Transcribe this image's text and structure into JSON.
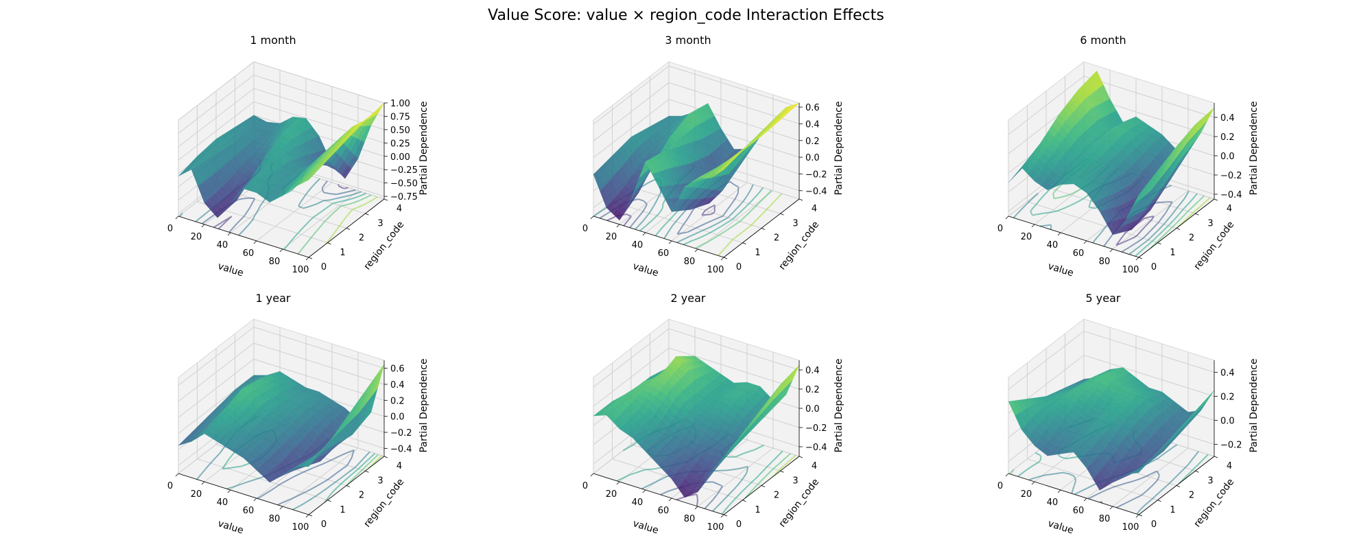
{
  "figure": {
    "title": "Value Score: value × region_code Interaction Effects"
  },
  "chart_data": [
    {
      "type": "surface",
      "title": "1 month",
      "xlabel": "value",
      "ylabel": "region_code",
      "zlabel": "Partial Dependence",
      "xlim": [
        0,
        100
      ],
      "ylim": [
        0,
        4
      ],
      "zlim": [
        -0.8,
        1.0
      ],
      "xticks": [
        "0",
        "20",
        "40",
        "60",
        "80",
        "100"
      ],
      "yticks": [
        "0",
        "1",
        "2",
        "3",
        "4"
      ],
      "zticks": [
        "−0.75",
        "−0.50",
        "−0.25",
        "0.00",
        "0.25",
        "0.50",
        "0.75",
        "1.00"
      ],
      "zticks_values": [
        -0.75,
        -0.5,
        -0.25,
        0,
        0.25,
        0.5,
        0.75,
        1.0
      ],
      "colormap": "viridis",
      "contour_projection": true,
      "surface": [
        [
          -0.05,
          0.15,
          -0.4,
          -0.6,
          -0.25,
          0.1,
          0.1,
          0.0,
          0.2,
          0.45,
          0.65
        ],
        [
          0.05,
          0.1,
          -0.35,
          -0.55,
          -0.1,
          0.15,
          0.05,
          0.05,
          0.3,
          0.55,
          0.75
        ],
        [
          0.1,
          0.05,
          -0.25,
          -0.3,
          0.15,
          0.2,
          0.0,
          0.1,
          0.4,
          0.65,
          0.85
        ],
        [
          0.05,
          0.0,
          -0.1,
          0.05,
          0.3,
          0.1,
          -0.2,
          0.0,
          0.45,
          0.75,
          0.95
        ],
        [
          0.0,
          -0.05,
          0.0,
          0.2,
          0.25,
          0.0,
          -0.45,
          -0.65,
          -0.2,
          0.5,
          1.0
        ]
      ]
    },
    {
      "type": "surface",
      "title": "3 month",
      "xlabel": "value",
      "ylabel": "region_code",
      "zlabel": "Partial Dependence",
      "xlim": [
        0,
        100
      ],
      "ylim": [
        0,
        4
      ],
      "zlim": [
        -0.5,
        0.65
      ],
      "xticks": [
        "0",
        "20",
        "40",
        "60",
        "80",
        "100"
      ],
      "yticks": [
        "0",
        "1",
        "2",
        "3",
        "4"
      ],
      "zticks": [
        "−0.4",
        "−0.2",
        "0.0",
        "0.2",
        "0.4",
        "0.6"
      ],
      "zticks_values": [
        -0.4,
        -0.2,
        0.0,
        0.2,
        0.4,
        0.6
      ],
      "colormap": "viridis",
      "contour_projection": true,
      "surface": [
        [
          0.0,
          -0.35,
          -0.45,
          -0.1,
          0.35,
          0.1,
          -0.15,
          0.2,
          0.35,
          0.4,
          0.55
        ],
        [
          0.05,
          -0.25,
          -0.3,
          0.05,
          0.3,
          -0.05,
          -0.3,
          0.0,
          0.3,
          0.45,
          0.6
        ],
        [
          0.1,
          -0.1,
          -0.05,
          0.25,
          0.2,
          -0.2,
          -0.4,
          -0.2,
          0.25,
          0.45,
          0.6
        ],
        [
          0.05,
          0.0,
          0.1,
          0.35,
          0.1,
          -0.25,
          -0.3,
          -0.05,
          0.3,
          0.5,
          0.62
        ],
        [
          0.0,
          0.05,
          0.15,
          0.3,
          0.05,
          -0.15,
          -0.1,
          0.1,
          0.35,
          0.55,
          0.65
        ]
      ]
    },
    {
      "type": "surface",
      "title": "6 month",
      "xlabel": "value",
      "ylabel": "region_code",
      "zlabel": "Partial Dependence",
      "xlim": [
        0,
        100
      ],
      "ylim": [
        0,
        4
      ],
      "zlim": [
        -0.45,
        0.55
      ],
      "xticks": [
        "0",
        "20",
        "40",
        "60",
        "80",
        "100"
      ],
      "yticks": [
        "0",
        "1",
        "2",
        "3",
        "4"
      ],
      "zticks": [
        "−0.4",
        "−0.2",
        "0.0",
        "0.2",
        "0.4"
      ],
      "zticks_values": [
        -0.4,
        -0.2,
        0.0,
        0.2,
        0.4
      ],
      "colormap": "viridis",
      "contour_projection": true,
      "surface": [
        [
          -0.1,
          0.1,
          0.0,
          -0.05,
          0.05,
          0.1,
          0.05,
          -0.1,
          -0.3,
          -0.1,
          0.2
        ],
        [
          -0.05,
          0.2,
          0.15,
          0.05,
          0.1,
          0.05,
          0.0,
          -0.2,
          -0.4,
          -0.15,
          0.3
        ],
        [
          0.0,
          0.35,
          0.25,
          0.1,
          0.15,
          0.05,
          -0.05,
          -0.25,
          -0.35,
          -0.05,
          0.4
        ],
        [
          0.05,
          0.45,
          0.3,
          0.1,
          0.2,
          0.1,
          0.0,
          -0.15,
          -0.2,
          0.1,
          0.48
        ],
        [
          0.0,
          0.5,
          0.25,
          0.05,
          0.15,
          0.1,
          0.05,
          -0.05,
          -0.05,
          0.2,
          0.5
        ]
      ]
    },
    {
      "type": "surface",
      "title": "1 year",
      "xlabel": "value",
      "ylabel": "region_code",
      "zlabel": "Partial Dependence",
      "xlim": [
        0,
        100
      ],
      "ylim": [
        0,
        4
      ],
      "zlim": [
        -0.5,
        0.7
      ],
      "xticks": [
        "0",
        "20",
        "40",
        "60",
        "80",
        "100"
      ],
      "yticks": [
        "0",
        "1",
        "2",
        "3",
        "4"
      ],
      "zticks": [
        "−0.4",
        "−0.2",
        "0.0",
        "0.2",
        "0.4",
        "0.6"
      ],
      "zticks_values": [
        -0.4,
        -0.2,
        0.0,
        0.2,
        0.4,
        0.6
      ],
      "colormap": "viridis",
      "contour_projection": true,
      "surface": [
        [
          -0.15,
          -0.05,
          0.1,
          0.05,
          0.0,
          -0.05,
          -0.15,
          -0.25,
          -0.1,
          0.05,
          0.1
        ],
        [
          -0.1,
          0.0,
          0.2,
          0.15,
          0.05,
          0.0,
          -0.1,
          -0.3,
          -0.2,
          0.0,
          0.2
        ],
        [
          -0.05,
          0.05,
          0.3,
          0.25,
          0.1,
          0.05,
          -0.05,
          -0.2,
          -0.3,
          -0.05,
          0.35
        ],
        [
          0.0,
          0.1,
          0.25,
          0.2,
          0.1,
          0.1,
          0.0,
          -0.1,
          -0.25,
          -0.1,
          0.5
        ],
        [
          0.0,
          0.05,
          0.15,
          0.1,
          0.05,
          0.05,
          0.0,
          -0.05,
          -0.15,
          0.0,
          0.65
        ]
      ]
    },
    {
      "type": "surface",
      "title": "2 year",
      "xlabel": "value",
      "ylabel": "region_code",
      "zlabel": "Partial Dependence",
      "xlim": [
        0,
        100
      ],
      "ylim": [
        0,
        4
      ],
      "zlim": [
        -0.5,
        0.5
      ],
      "xticks": [
        "0",
        "20",
        "40",
        "60",
        "80",
        "100"
      ],
      "yticks": [
        "0",
        "1",
        "2",
        "3",
        "4"
      ],
      "zticks": [
        "−0.4",
        "−0.2",
        "0.0",
        "0.2",
        "0.4"
      ],
      "zticks_values": [
        -0.4,
        -0.2,
        0.0,
        0.2,
        0.4
      ],
      "colormap": "viridis",
      "contour_projection": true,
      "surface": [
        [
          0.1,
          0.15,
          0.05,
          0.0,
          -0.1,
          -0.2,
          -0.3,
          -0.45,
          -0.35,
          -0.1,
          0.1
        ],
        [
          0.1,
          0.2,
          0.1,
          0.05,
          -0.05,
          -0.15,
          -0.2,
          -0.3,
          -0.25,
          -0.05,
          0.2
        ],
        [
          0.05,
          0.2,
          0.25,
          0.2,
          0.1,
          0.0,
          -0.05,
          -0.1,
          -0.15,
          0.0,
          0.3
        ],
        [
          0.05,
          0.1,
          0.35,
          0.25,
          0.1,
          0.05,
          0.1,
          0.05,
          -0.05,
          0.05,
          0.4
        ],
        [
          0.0,
          0.05,
          0.2,
          0.15,
          0.1,
          0.05,
          0.1,
          0.1,
          0.0,
          0.1,
          0.45
        ]
      ]
    },
    {
      "type": "surface",
      "title": "5 year",
      "xlabel": "value",
      "ylabel": "region_code",
      "zlabel": "Partial Dependence",
      "xlim": [
        0,
        100
      ],
      "ylim": [
        0,
        4
      ],
      "zlim": [
        -0.3,
        0.5
      ],
      "xticks": [
        "0",
        "20",
        "40",
        "60",
        "80",
        "100"
      ],
      "yticks": [
        "0",
        "1",
        "2",
        "3",
        "4"
      ],
      "zticks": [
        "−0.2",
        "0.0",
        "0.2",
        "0.4"
      ],
      "zticks_values": [
        -0.2,
        0.0,
        0.2,
        0.4
      ],
      "colormap": "viridis",
      "contour_projection": true,
      "surface": [
        [
          0.3,
          0.1,
          0.0,
          -0.05,
          0.0,
          0.05,
          -0.05,
          -0.2,
          -0.1,
          0.0,
          0.05
        ],
        [
          0.2,
          0.15,
          0.1,
          0.05,
          0.05,
          0.1,
          0.0,
          -0.1,
          -0.15,
          -0.05,
          0.1
        ],
        [
          0.1,
          0.15,
          0.2,
          0.15,
          0.1,
          0.15,
          0.1,
          0.0,
          -0.1,
          -0.05,
          0.15
        ],
        [
          0.05,
          0.1,
          0.2,
          0.25,
          0.2,
          0.2,
          0.15,
          0.05,
          -0.05,
          0.0,
          0.2
        ],
        [
          0.0,
          0.05,
          0.15,
          0.2,
          0.15,
          0.1,
          0.1,
          0.05,
          0.0,
          0.05,
          0.25
        ]
      ]
    }
  ]
}
